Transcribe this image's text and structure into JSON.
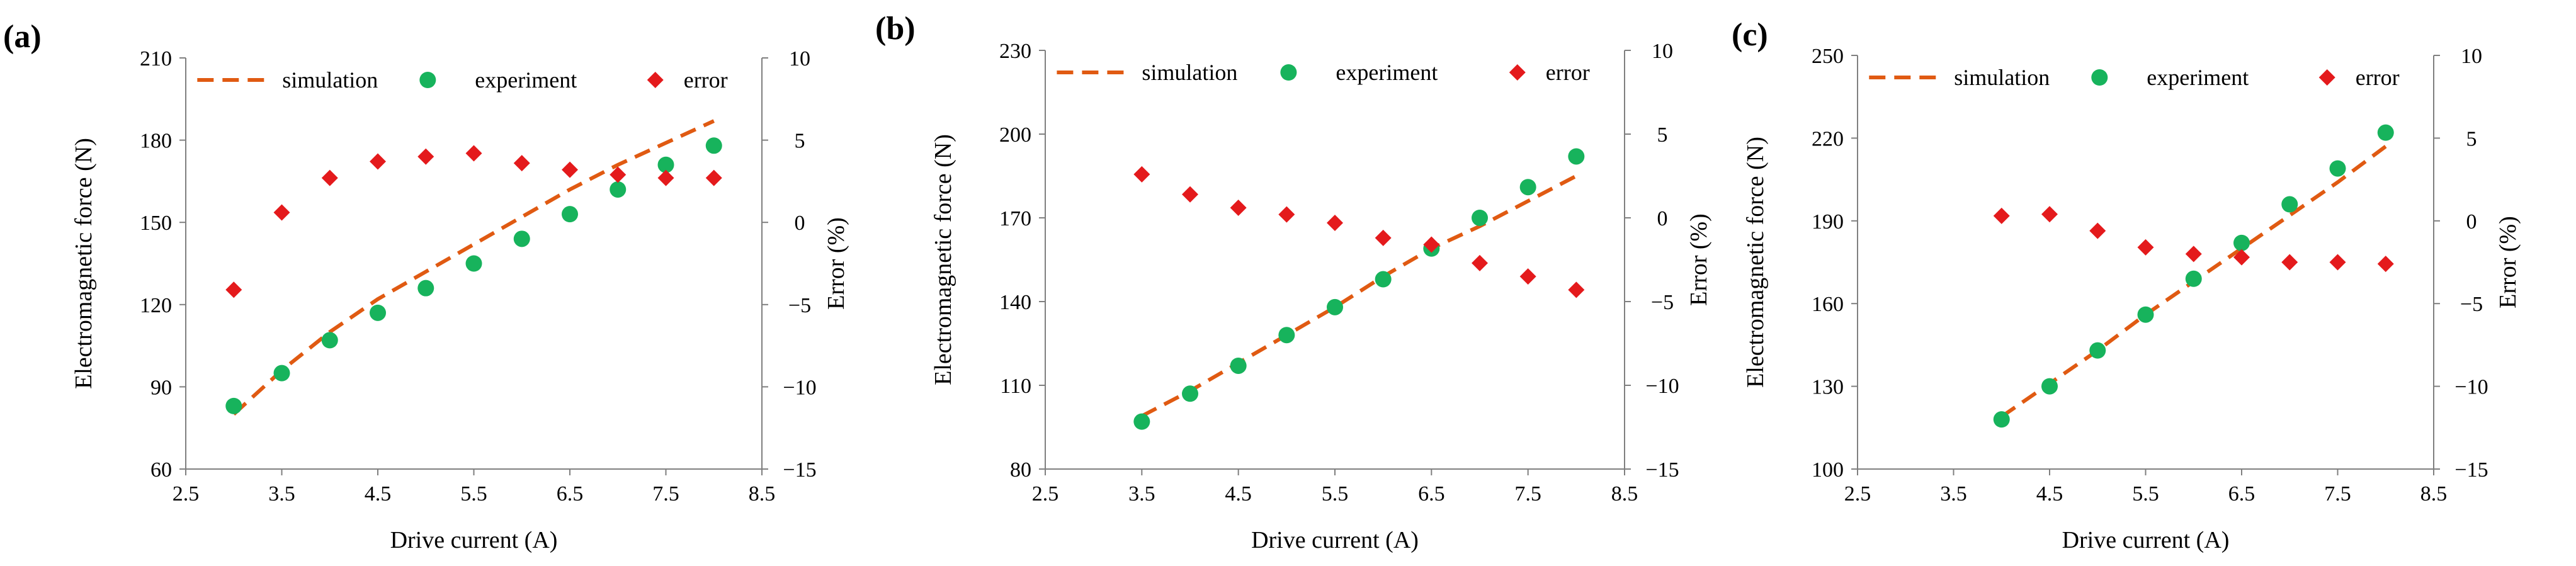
{
  "colors": {
    "simulation": "#E05A12",
    "experiment": "#17B35C",
    "error": "#E41A1C",
    "axis": "#7F7F7F",
    "text": "#000000"
  },
  "legend": {
    "simulation": "simulation",
    "experiment": "experiment",
    "error": "error"
  },
  "chart_data": [
    {
      "type": "line",
      "panel_label": "(a)",
      "xlabel": "Drive current (A)",
      "ylabel": "Electromagnetic  force (N)",
      "y2label": "Error (%)",
      "xlim": [
        2.5,
        8.5
      ],
      "xticks": [
        "2.5",
        "3.5",
        "4.5",
        "5.5",
        "6.5",
        "7.5",
        "8.5"
      ],
      "ylim": [
        60,
        210
      ],
      "yticks": [
        "60",
        "90",
        "120",
        "150",
        "180",
        "210"
      ],
      "y2lim": [
        -15,
        10
      ],
      "y2ticks": [
        "-15",
        "-10",
        "-5",
        "0",
        "5",
        "10"
      ],
      "grid": false,
      "legend_position": "top",
      "series": [
        {
          "name": "simulation",
          "kind": "dashed-line",
          "axis": "left",
          "x": [
            3.0,
            3.5,
            4.0,
            4.5,
            5.0,
            5.5,
            6.0,
            6.5,
            7.0,
            7.5,
            8.0
          ],
          "y": [
            80,
            96,
            110,
            122,
            132,
            142,
            152,
            162,
            171,
            179,
            187
          ]
        },
        {
          "name": "experiment",
          "kind": "circle",
          "axis": "left",
          "x": [
            3.0,
            3.5,
            4.0,
            4.5,
            5.0,
            5.5,
            6.0,
            6.5,
            7.0,
            7.5,
            8.0
          ],
          "y": [
            83,
            95,
            107,
            117,
            126,
            135,
            144,
            153,
            162,
            171,
            178
          ]
        },
        {
          "name": "error",
          "kind": "diamond",
          "axis": "right",
          "x": [
            3.0,
            3.5,
            4.0,
            4.5,
            5.0,
            5.5,
            6.0,
            6.5,
            7.0,
            7.5,
            8.0
          ],
          "y": [
            -4.1,
            0.6,
            2.7,
            3.7,
            4.0,
            4.2,
            3.6,
            3.2,
            2.9,
            2.7,
            2.7
          ]
        }
      ]
    },
    {
      "type": "line",
      "panel_label": "(b)",
      "xlabel": "Drive current (A)",
      "ylabel": "Electromagnetic  force (N)",
      "y2label": "Error (%)",
      "xlim": [
        2.5,
        8.5
      ],
      "xticks": [
        "2.5",
        "3.5",
        "4.5",
        "5.5",
        "6.5",
        "7.5",
        "8.5"
      ],
      "ylim": [
        80,
        230
      ],
      "yticks": [
        "80",
        "110",
        "140",
        "170",
        "200",
        "230"
      ],
      "y2lim": [
        -15,
        10
      ],
      "y2ticks": [
        "-15",
        "-10",
        "-5",
        "0",
        "5",
        "10"
      ],
      "grid": false,
      "legend_position": "top",
      "series": [
        {
          "name": "simulation",
          "kind": "dashed-line",
          "axis": "left",
          "x": [
            3.5,
            4.0,
            4.5,
            5.0,
            5.5,
            6.0,
            6.5,
            7.0,
            7.5,
            8.0
          ],
          "y": [
            99,
            108,
            118,
            128,
            138,
            149,
            159,
            167,
            176,
            185
          ]
        },
        {
          "name": "experiment",
          "kind": "circle",
          "axis": "left",
          "x": [
            3.5,
            4.0,
            4.5,
            5.0,
            5.5,
            6.0,
            6.5,
            7.0,
            7.5,
            8.0
          ],
          "y": [
            97,
            107,
            117,
            128,
            138,
            148,
            159,
            170,
            181,
            192
          ]
        },
        {
          "name": "error",
          "kind": "diamond",
          "axis": "right",
          "x": [
            3.5,
            4.0,
            4.5,
            5.0,
            5.5,
            6.0,
            6.5,
            7.0,
            7.5,
            8.0
          ],
          "y": [
            2.6,
            1.4,
            0.6,
            0.2,
            -0.3,
            -1.2,
            -1.6,
            -2.7,
            -3.5,
            -4.3
          ]
        }
      ]
    },
    {
      "type": "line",
      "panel_label": "(c)",
      "xlabel": "Drive current (A)",
      "ylabel": "Electromagnetic  force (N)",
      "y2label": "Error (%)",
      "xlim": [
        2.5,
        8.5
      ],
      "xticks": [
        "2.5",
        "3.5",
        "4.5",
        "5.5",
        "6.5",
        "7.5",
        "8.5"
      ],
      "ylim": [
        100,
        250
      ],
      "yticks": [
        "100",
        "130",
        "160",
        "190",
        "220",
        "250"
      ],
      "y2lim": [
        -15,
        10
      ],
      "y2ticks": [
        "-15",
        "-10",
        "-5",
        "0",
        "5",
        "10"
      ],
      "grid": false,
      "legend_position": "top",
      "series": [
        {
          "name": "simulation",
          "kind": "dashed-line",
          "axis": "left",
          "x": [
            4.0,
            4.5,
            5.0,
            5.5,
            6.0,
            6.5,
            7.0,
            7.5,
            8.0
          ],
          "y": [
            119,
            131,
            143,
            156,
            168,
            180,
            192,
            204,
            217
          ]
        },
        {
          "name": "experiment",
          "kind": "circle",
          "axis": "left",
          "x": [
            4.0,
            4.5,
            5.0,
            5.5,
            6.0,
            6.5,
            7.0,
            7.5,
            8.0
          ],
          "y": [
            118,
            130,
            143,
            156,
            169,
            182,
            196,
            209,
            222
          ]
        },
        {
          "name": "error",
          "kind": "diamond",
          "axis": "right",
          "x": [
            4.0,
            4.5,
            5.0,
            5.5,
            6.0,
            6.5,
            7.0,
            7.5,
            8.0
          ],
          "y": [
            0.3,
            0.4,
            -0.6,
            -1.6,
            -2.0,
            -2.2,
            -2.5,
            -2.5,
            -2.6
          ]
        }
      ]
    }
  ]
}
